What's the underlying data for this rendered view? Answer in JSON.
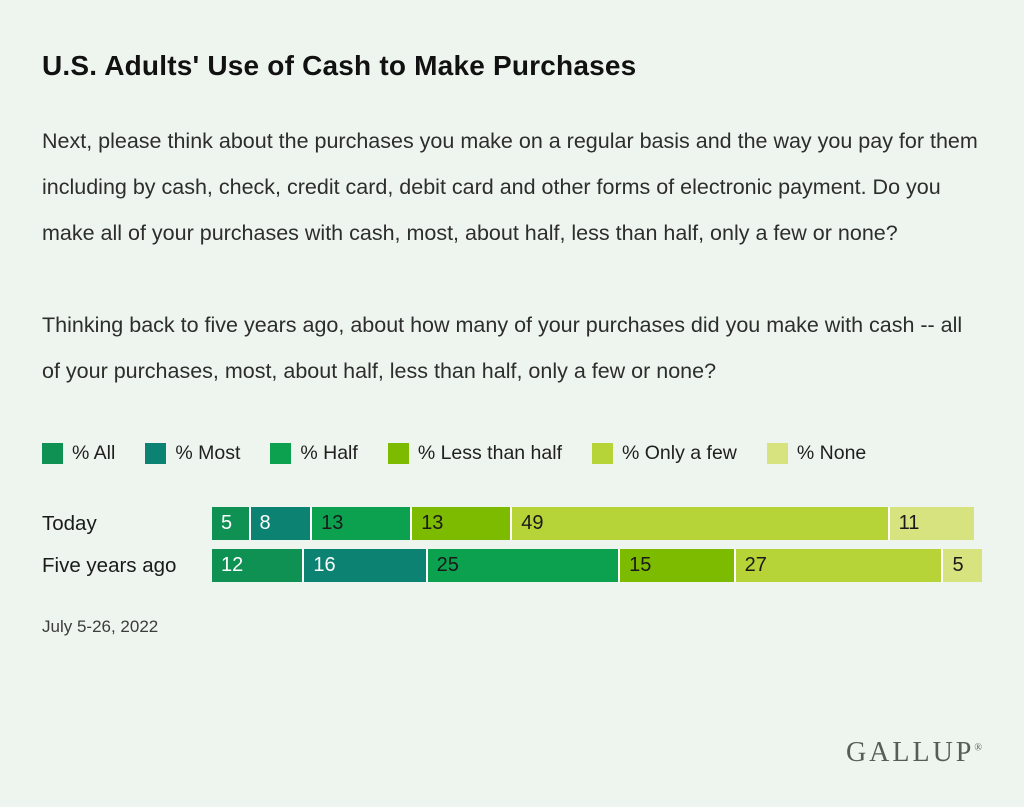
{
  "page": {
    "background_color": "#EEF5EE",
    "title": "U.S. Adults' Use of Cash to Make Purchases",
    "question_1": "Next, please think about the purchases you make on a regular basis and the way you pay for them including by cash, check, credit card, debit card and other forms of electronic payment. Do you make all of your purchases with cash, most, about half, less than half, only a few or none?",
    "question_2": "Thinking back to five years ago, about how many of your purchases did you make with cash -- all of your purchases, most, about half, less than half, only a few or none?",
    "date_note": "July 5-26, 2022",
    "brand": "GALLUP",
    "brand_mark": "®"
  },
  "chart_data": {
    "type": "bar",
    "subtype": "horizontal-stacked",
    "title": "U.S. Adults' Use of Cash to Make Purchases",
    "categories": [
      "Today",
      "Five years ago"
    ],
    "series": [
      {
        "name": "% All",
        "color": "#0F9154",
        "label_color": "#FFFFFF",
        "values": [
          5,
          12
        ]
      },
      {
        "name": "% Most",
        "color": "#0B8272",
        "label_color": "#FFFFFF",
        "values": [
          8,
          16
        ]
      },
      {
        "name": "% Half",
        "color": "#0BA14F",
        "label_color": "#1A1A1A",
        "values": [
          13,
          25
        ]
      },
      {
        "name": "% Less than half",
        "color": "#7CBB00",
        "label_color": "#1A1A1A",
        "values": [
          13,
          15
        ]
      },
      {
        "name": "% Only a few",
        "color": "#B6D437",
        "label_color": "#1A1A1A",
        "values": [
          49,
          27
        ]
      },
      {
        "name": "% None",
        "color": "#D6E37F",
        "label_color": "#1A1A1A",
        "values": [
          11,
          5
        ]
      }
    ],
    "xmax": 100,
    "grid": false,
    "legend_position": "top",
    "value_labels": "inside-start",
    "separator_color": "#FFFFFF"
  }
}
